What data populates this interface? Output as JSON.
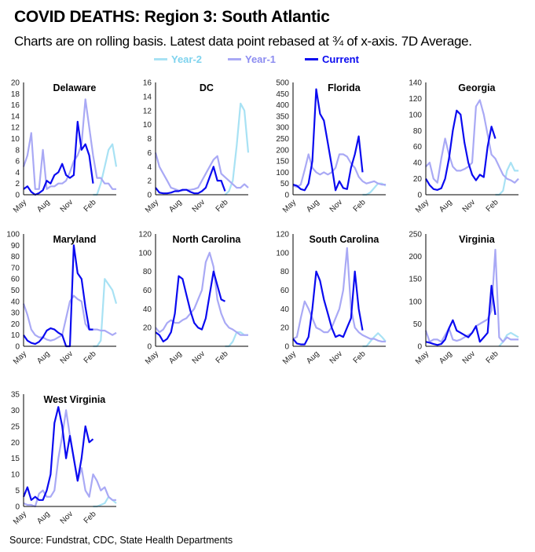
{
  "header": {
    "title": "COVID DEATHS: Region 3: South Atlantic",
    "subtitle": "Charts are on rolling basis. Latest data point rebased at ¾ of x-axis. 7D Average."
  },
  "legend": [
    {
      "label": "Year-2",
      "color": "#a8e2f4"
    },
    {
      "label": "Year-1",
      "color": "#a9a9f5"
    },
    {
      "label": "Current",
      "color": "#0a0af0"
    }
  ],
  "source": "Source: Fundstrat, CDC, State Health Departments",
  "chart_data": {
    "type": "line",
    "layout": "small-multiples 4x3",
    "x": [
      "05-01",
      "05-16",
      "06-01",
      "06-16",
      "07-01",
      "07-16",
      "08-01",
      "08-16",
      "09-01",
      "09-16",
      "10-01",
      "10-16",
      "11-01",
      "11-16",
      "12-01",
      "12-16",
      "01-01",
      "01-16",
      "02-01",
      "02-16",
      "03-01",
      "03-16",
      "04-01",
      "04-16",
      "04-30"
    ],
    "xtick_labels": [
      "May",
      "Aug",
      "Nov",
      "Feb"
    ],
    "xtick_dates": [
      "05-01",
      "08-01",
      "11-01",
      "02-01"
    ],
    "series_names": [
      "Year-2",
      "Year-1",
      "Current"
    ],
    "charts": [
      {
        "title": "Delaware",
        "ylim": [
          0,
          20
        ],
        "ystep": 2,
        "year2": [
          null,
          null,
          null,
          null,
          null,
          null,
          null,
          null,
          null,
          null,
          null,
          null,
          null,
          null,
          null,
          null,
          null,
          null,
          0,
          0,
          2,
          5,
          8,
          9,
          5
        ],
        "year1": [
          5,
          7,
          11,
          1,
          1,
          8,
          1,
          1.5,
          1.5,
          2,
          2,
          2.5,
          4,
          6,
          7,
          9,
          17,
          12,
          7,
          3,
          3,
          2,
          2,
          1,
          1
        ],
        "current": [
          1,
          1.5,
          0.5,
          0,
          0.3,
          0.8,
          2.5,
          2,
          3.5,
          4,
          5.5,
          3.5,
          3,
          3.5,
          13,
          8,
          9,
          7,
          2
        ]
      },
      {
        "title": "DC",
        "ylim": [
          0,
          16
        ],
        "ystep": 2,
        "year2": [
          null,
          null,
          null,
          null,
          null,
          null,
          null,
          null,
          null,
          null,
          null,
          null,
          null,
          null,
          null,
          null,
          null,
          null,
          0,
          0.5,
          2,
          7,
          13,
          12,
          6
        ],
        "year1": [
          6,
          4,
          3,
          2,
          1,
          0.8,
          0.6,
          0.6,
          0.7,
          0.7,
          0.8,
          1,
          2,
          3,
          4,
          5,
          5.5,
          3,
          2.5,
          2,
          1.5,
          1,
          1,
          1.5,
          1
        ],
        "current": [
          1,
          0.3,
          0.2,
          0.2,
          0.3,
          0.5,
          0.5,
          0.7,
          0.7,
          0.4,
          0.2,
          0.2,
          0.5,
          1,
          2.5,
          4,
          2,
          2,
          0.5
        ]
      },
      {
        "title": "Florida",
        "ylim": [
          0,
          500
        ],
        "ystep": 50,
        "year2": [
          null,
          null,
          null,
          null,
          null,
          null,
          null,
          null,
          null,
          null,
          null,
          null,
          null,
          null,
          null,
          null,
          null,
          null,
          0,
          0,
          10,
          30,
          50,
          50,
          40
        ],
        "year1": [
          40,
          35,
          45,
          110,
          180,
          120,
          100,
          90,
          100,
          90,
          100,
          120,
          180,
          180,
          170,
          140,
          120,
          80,
          60,
          50,
          55,
          60,
          50,
          45,
          45
        ],
        "current": [
          45,
          40,
          25,
          20,
          50,
          150,
          470,
          360,
          330,
          230,
          130,
          20,
          60,
          30,
          25,
          120,
          180,
          260,
          100
        ]
      },
      {
        "title": "Georgia",
        "ylim": [
          0,
          140
        ],
        "ystep": 20,
        "year2": [
          null,
          null,
          null,
          null,
          null,
          null,
          null,
          null,
          null,
          null,
          null,
          null,
          null,
          null,
          null,
          null,
          null,
          null,
          0,
          0,
          5,
          30,
          40,
          30,
          30
        ],
        "year1": [
          35,
          40,
          20,
          15,
          45,
          70,
          50,
          35,
          30,
          30,
          32,
          35,
          40,
          110,
          118,
          100,
          75,
          50,
          45,
          35,
          25,
          20,
          18,
          15,
          20
        ],
        "current": [
          20,
          12,
          7,
          6,
          8,
          20,
          45,
          80,
          105,
          100,
          65,
          40,
          25,
          18,
          25,
          22,
          60,
          85,
          70
        ]
      },
      {
        "title": "Maryland",
        "ylim": [
          0,
          100
        ],
        "ystep": 10,
        "year2": [
          null,
          null,
          null,
          null,
          null,
          null,
          null,
          null,
          null,
          null,
          null,
          null,
          null,
          null,
          null,
          null,
          null,
          null,
          0,
          0,
          5,
          60,
          55,
          50,
          38
        ],
        "year1": [
          38,
          28,
          15,
          10,
          8,
          8,
          6,
          5,
          6,
          8,
          10,
          25,
          40,
          45,
          42,
          40,
          20,
          15,
          15,
          15,
          14,
          14,
          12,
          10,
          12
        ],
        "current": [
          10,
          5,
          3,
          2,
          4,
          8,
          14,
          16,
          15,
          12,
          10,
          0,
          0,
          90,
          65,
          60,
          35,
          15,
          15
        ]
      },
      {
        "title": "North Carolina",
        "ylim": [
          0,
          120
        ],
        "ystep": 20,
        "year2": [
          null,
          null,
          null,
          null,
          null,
          null,
          null,
          null,
          null,
          null,
          null,
          null,
          null,
          null,
          null,
          null,
          null,
          null,
          0,
          0,
          5,
          15,
          15,
          12,
          12
        ],
        "year1": [
          20,
          15,
          18,
          25,
          28,
          25,
          25,
          28,
          30,
          35,
          40,
          50,
          60,
          90,
          100,
          85,
          50,
          35,
          25,
          20,
          18,
          15,
          12,
          12,
          12
        ],
        "current": [
          15,
          12,
          5,
          8,
          15,
          35,
          75,
          72,
          55,
          38,
          25,
          20,
          18,
          30,
          55,
          80,
          65,
          50,
          48
        ]
      },
      {
        "title": "South Carolina",
        "ylim": [
          0,
          120
        ],
        "ystep": 20,
        "year2": [
          null,
          null,
          null,
          null,
          null,
          null,
          null,
          null,
          null,
          null,
          null,
          null,
          null,
          null,
          null,
          null,
          null,
          null,
          0,
          0,
          5,
          10,
          14,
          10,
          5
        ],
        "year1": [
          8,
          10,
          30,
          48,
          40,
          30,
          20,
          18,
          15,
          15,
          20,
          30,
          40,
          60,
          105,
          40,
          20,
          15,
          12,
          10,
          8,
          8,
          6,
          5,
          5
        ],
        "current": [
          8,
          3,
          2,
          2,
          10,
          40,
          80,
          70,
          50,
          35,
          20,
          10,
          12,
          10,
          20,
          30,
          80,
          40,
          17
        ]
      },
      {
        "title": "Virginia",
        "ylim": [
          0,
          250
        ],
        "ystep": 50,
        "year2": [
          null,
          null,
          null,
          null,
          null,
          null,
          null,
          null,
          null,
          null,
          null,
          null,
          null,
          null,
          null,
          null,
          null,
          null,
          null,
          0,
          10,
          25,
          30,
          25,
          20
        ],
        "year1": [
          35,
          10,
          15,
          15,
          10,
          25,
          40,
          15,
          12,
          15,
          20,
          25,
          30,
          45,
          50,
          55,
          60,
          80,
          215,
          20,
          10,
          20,
          15,
          15,
          15
        ],
        "current": [
          10,
          8,
          5,
          3,
          5,
          15,
          40,
          58,
          35,
          30,
          25,
          20,
          30,
          45,
          10,
          20,
          30,
          135,
          70
        ]
      },
      {
        "title": "West Virginia",
        "ylim": [
          0,
          35
        ],
        "ystep": 5,
        "year2": [
          null,
          null,
          null,
          null,
          null,
          null,
          null,
          null,
          null,
          null,
          null,
          null,
          null,
          null,
          null,
          null,
          null,
          null,
          0,
          0,
          0.5,
          1,
          3,
          2,
          1
        ],
        "year1": [
          1,
          0.5,
          0.5,
          0,
          4,
          5,
          3,
          3,
          5,
          15,
          22,
          30,
          22,
          15,
          8,
          12,
          5,
          3,
          10,
          8,
          5,
          6,
          3,
          2,
          2
        ],
        "current": [
          3,
          6,
          2,
          3,
          2,
          2,
          5,
          10,
          26,
          31,
          25,
          15,
          22,
          15,
          8,
          15,
          25,
          20,
          21
        ]
      }
    ]
  }
}
